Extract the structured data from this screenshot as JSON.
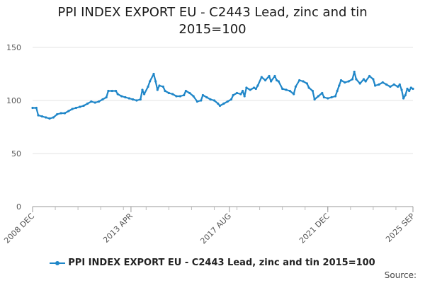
{
  "chart_data": {
    "type": "line",
    "title": "PPI INDEX EXPORT EU - C2443 Lead, zinc and tin",
    "subtitle": "2015=100",
    "xlabel": "",
    "ylabel": "",
    "ylim": [
      0,
      150
    ],
    "yticks": [
      "0",
      "50",
      "100",
      "150"
    ],
    "xticks": [
      "2008 DEC",
      "2013 APR",
      "2017 AUG",
      "2021 DEC",
      "2025 SEP"
    ],
    "xlim": [
      "2008-12",
      "2025-09"
    ],
    "grid": true,
    "legend_position": "bottom",
    "series": [
      {
        "name": "PPI INDEX EXPORT EU - C2443 Lead, zinc and tin 2015=100",
        "color": "#1f86c8",
        "points": [
          [
            "2008-12",
            93
          ],
          [
            "2009-02",
            93
          ],
          [
            "2009-03",
            86
          ],
          [
            "2009-05",
            85
          ],
          [
            "2009-07",
            84
          ],
          [
            "2009-09",
            83
          ],
          [
            "2009-11",
            84
          ],
          [
            "2010-01",
            87
          ],
          [
            "2010-03",
            88
          ],
          [
            "2010-05",
            88
          ],
          [
            "2010-07",
            90
          ],
          [
            "2010-09",
            92
          ],
          [
            "2010-11",
            93
          ],
          [
            "2011-01",
            94
          ],
          [
            "2011-03",
            95
          ],
          [
            "2011-05",
            97
          ],
          [
            "2011-07",
            99
          ],
          [
            "2011-09",
            98
          ],
          [
            "2011-11",
            99
          ],
          [
            "2012-01",
            101
          ],
          [
            "2012-03",
            103
          ],
          [
            "2012-04",
            109
          ],
          [
            "2012-06",
            109
          ],
          [
            "2012-08",
            109
          ],
          [
            "2012-09",
            106
          ],
          [
            "2012-11",
            104
          ],
          [
            "2013-01",
            103
          ],
          [
            "2013-03",
            102
          ],
          [
            "2013-05",
            101
          ],
          [
            "2013-07",
            100
          ],
          [
            "2013-09",
            101
          ],
          [
            "2013-10",
            110
          ],
          [
            "2013-11",
            106
          ],
          [
            "2014-01",
            113
          ],
          [
            "2014-02",
            118
          ],
          [
            "2014-04",
            125
          ],
          [
            "2014-05",
            118
          ],
          [
            "2014-06",
            110
          ],
          [
            "2014-07",
            114
          ],
          [
            "2014-09",
            113
          ],
          [
            "2014-10",
            109
          ],
          [
            "2014-12",
            107
          ],
          [
            "2015-02",
            106
          ],
          [
            "2015-04",
            104
          ],
          [
            "2015-06",
            104
          ],
          [
            "2015-08",
            105
          ],
          [
            "2015-09",
            109
          ],
          [
            "2015-11",
            107
          ],
          [
            "2016-01",
            104
          ],
          [
            "2016-03",
            99
          ],
          [
            "2016-05",
            100
          ],
          [
            "2016-06",
            105
          ],
          [
            "2016-08",
            103
          ],
          [
            "2016-10",
            101
          ],
          [
            "2016-12",
            100
          ],
          [
            "2017-02",
            97
          ],
          [
            "2017-03",
            95
          ],
          [
            "2017-05",
            97
          ],
          [
            "2017-07",
            99
          ],
          [
            "2017-09",
            101
          ],
          [
            "2017-10",
            105
          ],
          [
            "2017-12",
            107
          ],
          [
            "2018-02",
            106
          ],
          [
            "2018-03",
            109
          ],
          [
            "2018-04",
            104
          ],
          [
            "2018-05",
            112
          ],
          [
            "2018-07",
            110
          ],
          [
            "2018-09",
            112
          ],
          [
            "2018-10",
            111
          ],
          [
            "2018-11",
            114
          ],
          [
            "2019-01",
            122
          ],
          [
            "2019-03",
            119
          ],
          [
            "2019-05",
            123
          ],
          [
            "2019-06",
            118
          ],
          [
            "2019-08",
            123
          ],
          [
            "2019-09",
            119
          ],
          [
            "2019-10",
            118
          ],
          [
            "2019-12",
            111
          ],
          [
            "2020-02",
            110
          ],
          [
            "2020-04",
            109
          ],
          [
            "2020-06",
            106
          ],
          [
            "2020-07",
            113
          ],
          [
            "2020-09",
            119
          ],
          [
            "2020-11",
            118
          ],
          [
            "2021-01",
            116
          ],
          [
            "2021-02",
            112
          ],
          [
            "2021-04",
            109
          ],
          [
            "2021-05",
            101
          ],
          [
            "2021-07",
            104
          ],
          [
            "2021-09",
            107
          ],
          [
            "2021-10",
            103
          ],
          [
            "2021-12",
            102
          ],
          [
            "2022-02",
            103
          ],
          [
            "2022-04",
            104
          ],
          [
            "2022-05",
            109
          ],
          [
            "2022-06",
            114
          ],
          [
            "2022-07",
            119
          ],
          [
            "2022-09",
            117
          ],
          [
            "2022-11",
            118
          ],
          [
            "2023-01",
            120
          ],
          [
            "2023-02",
            127
          ],
          [
            "2023-03",
            120
          ],
          [
            "2023-05",
            116
          ],
          [
            "2023-07",
            120
          ],
          [
            "2023-08",
            118
          ],
          [
            "2023-10",
            123
          ],
          [
            "2023-12",
            120
          ],
          [
            "2024-01",
            114
          ],
          [
            "2024-03",
            115
          ],
          [
            "2024-05",
            117
          ],
          [
            "2024-07",
            115
          ],
          [
            "2024-09",
            113
          ],
          [
            "2024-11",
            115
          ],
          [
            "2025-01",
            113
          ],
          [
            "2025-02",
            115
          ],
          [
            "2025-03",
            110
          ],
          [
            "2025-04",
            102
          ],
          [
            "2025-05",
            105
          ],
          [
            "2025-06",
            111
          ],
          [
            "2025-07",
            109
          ],
          [
            "2025-08",
            112
          ],
          [
            "2025-09",
            111
          ]
        ]
      }
    ]
  },
  "source_label": "Source:"
}
